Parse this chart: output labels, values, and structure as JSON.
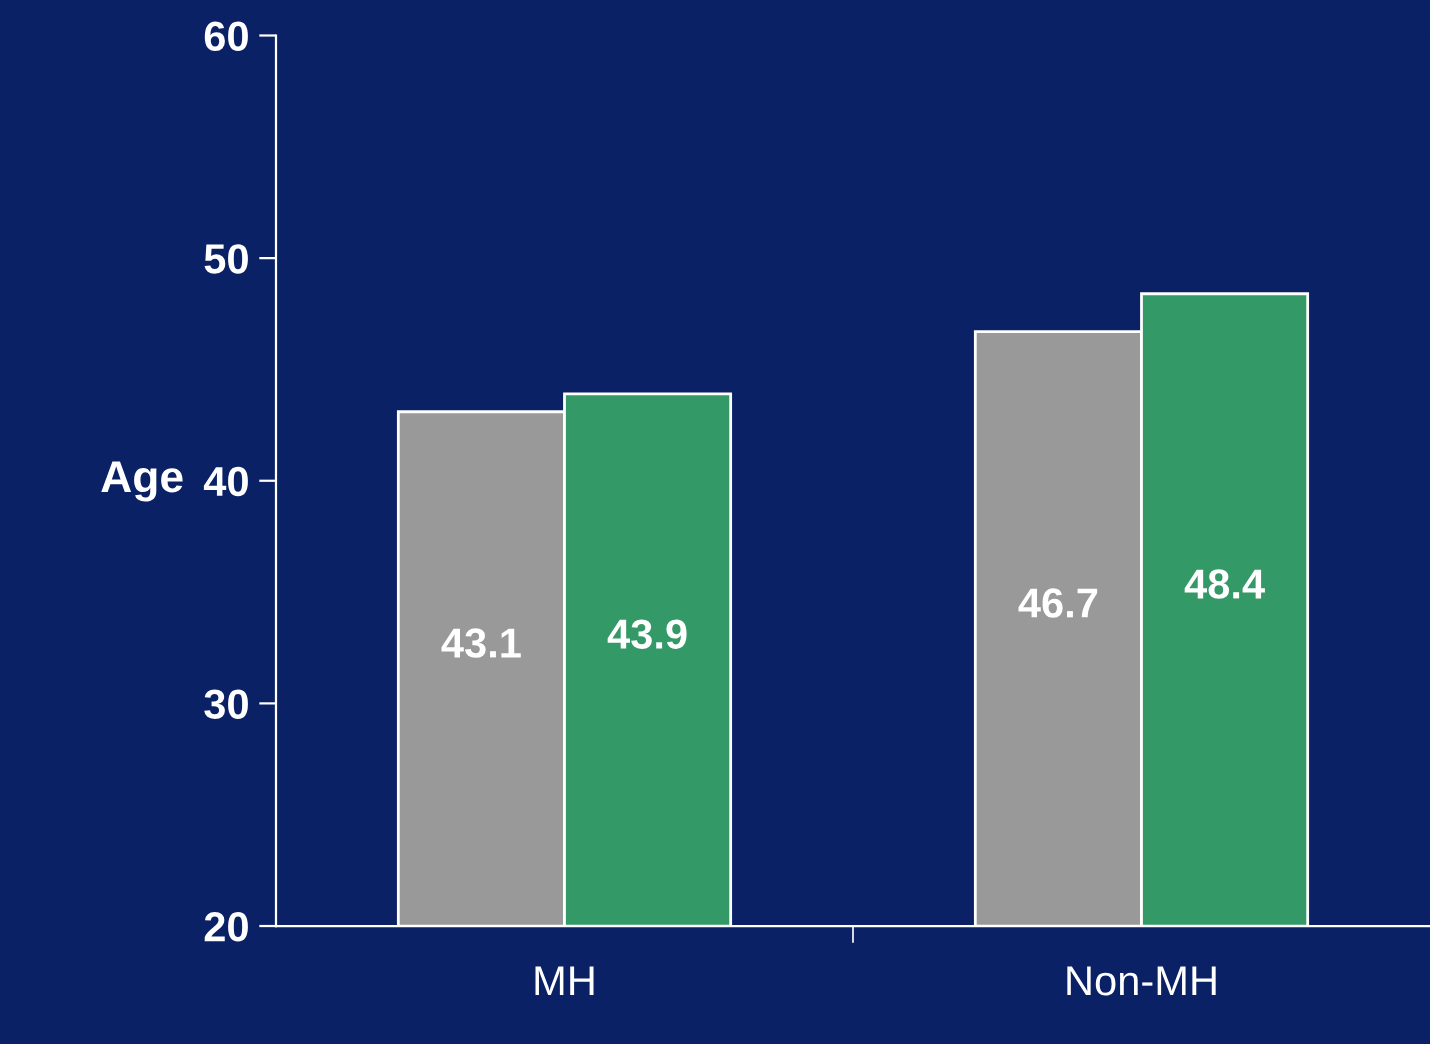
{
  "chart_data": {
    "type": "bar",
    "ylabel": "Age",
    "categories": [
      "MH",
      "Non-MH"
    ],
    "series": [
      {
        "color": "#999999",
        "values": [
          43.1,
          46.7
        ]
      },
      {
        "color": "#339966",
        "values": [
          43.9,
          48.4
        ]
      }
    ],
    "ylim": [
      20,
      60
    ],
    "yticks": [
      20,
      30,
      40,
      50,
      60
    ],
    "grid": false,
    "legend": false,
    "data_labels": true
  }
}
